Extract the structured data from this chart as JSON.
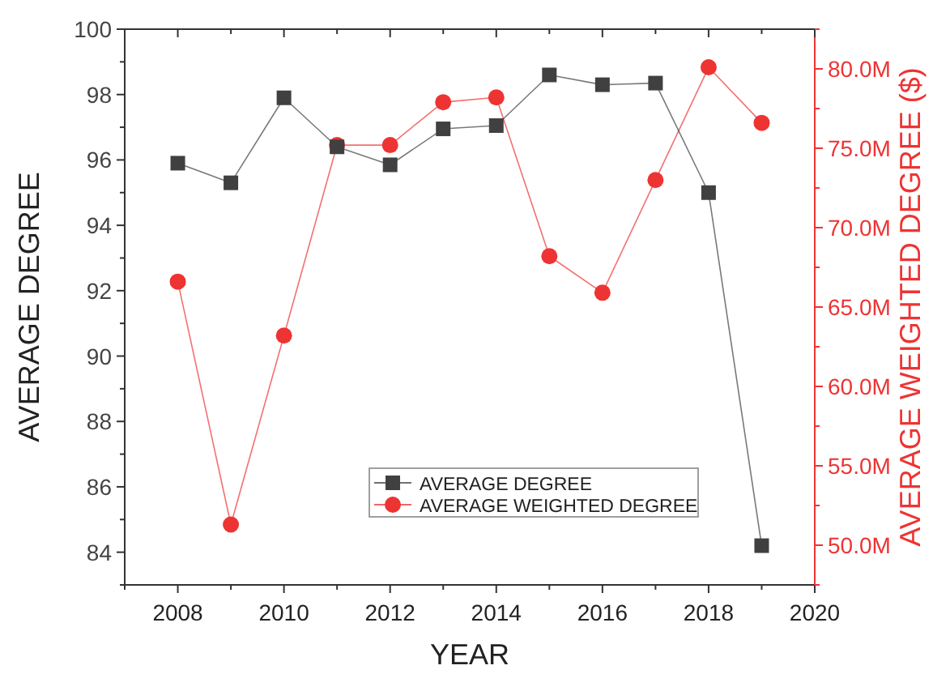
{
  "chart_data": {
    "type": "line",
    "xlabel": "YEAR",
    "ylabel": "AVERAGE DEGREE",
    "y2label": "AVERAGE WEIGHTED DEGREE ($)",
    "x": [
      2008,
      2009,
      2010,
      2011,
      2012,
      2013,
      2014,
      2015,
      2016,
      2017,
      2018,
      2019
    ],
    "series": [
      {
        "name": "AVERAGE DEGREE",
        "color": "#404040",
        "marker": "square",
        "values": [
          95.9,
          95.3,
          97.9,
          96.4,
          95.85,
          96.95,
          97.05,
          98.6,
          98.3,
          98.35,
          95.0,
          84.2
        ]
      },
      {
        "name": "AVERAGE WEIGHTED DEGREE",
        "color": "#ee3333",
        "marker": "circle",
        "axis": "y2",
        "values": [
          66600000,
          51300000,
          63200000,
          75200000,
          75200000,
          77900000,
          78200000,
          68200000,
          65900000,
          73000000,
          80100000,
          76600000
        ]
      }
    ],
    "xlim": [
      2007,
      2020
    ],
    "xticks": [
      {
        "value": 2007,
        "label": null
      },
      2008,
      {
        "value": 2009,
        "label": null
      },
      2010,
      {
        "value": 2011,
        "label": null
      },
      2012,
      {
        "value": 2013,
        "label": null
      },
      2014,
      {
        "value": 2015,
        "label": null
      },
      2016,
      {
        "value": 2017,
        "label": null
      },
      2018,
      {
        "value": 2019,
        "label": null
      },
      2020
    ],
    "ylim": [
      83,
      100
    ],
    "yticks": [
      {
        "value": 83,
        "label": null
      },
      84,
      {
        "value": 85,
        "label": null
      },
      86,
      {
        "value": 87,
        "label": null
      },
      88,
      {
        "value": 89,
        "label": null
      },
      90,
      {
        "value": 91,
        "label": null
      },
      92,
      {
        "value": 93,
        "label": null
      },
      94,
      {
        "value": 95,
        "label": null
      },
      96,
      {
        "value": 97,
        "label": null
      },
      98,
      {
        "value": 99,
        "label": null
      },
      100
    ],
    "y2lim": [
      47500000,
      82500000
    ],
    "y2ticks": [
      {
        "value": 47500000,
        "label": null
      },
      {
        "value": 50000000,
        "label": "50.0M"
      },
      {
        "value": 52500000,
        "label": null
      },
      {
        "value": 55000000,
        "label": "55.0M"
      },
      {
        "value": 57500000,
        "label": null
      },
      {
        "value": 60000000,
        "label": "60.0M"
      },
      {
        "value": 62500000,
        "label": null
      },
      {
        "value": 65000000,
        "label": "65.0M"
      },
      {
        "value": 67500000,
        "label": null
      },
      {
        "value": 70000000,
        "label": "70.0M"
      },
      {
        "value": 72500000,
        "label": null
      },
      {
        "value": 75000000,
        "label": "75.0M"
      },
      {
        "value": 77500000,
        "label": null
      },
      {
        "value": 80000000,
        "label": "80.0M"
      },
      {
        "value": 82500000,
        "label": null
      }
    ],
    "legend": "bottom",
    "grid": false,
    "line_style": "solid"
  }
}
